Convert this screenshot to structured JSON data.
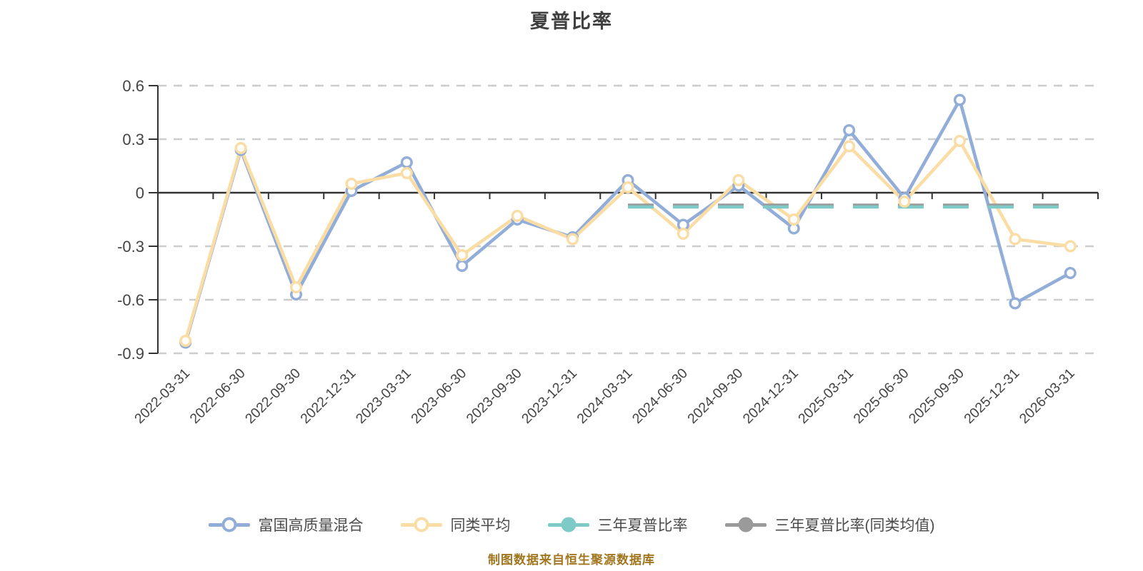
{
  "title": "夏普比率",
  "caption": "制图数据来自恒生聚源数据库",
  "colors": {
    "fund_line": "#92add8",
    "peer_line": "#f9dda4",
    "sharpe_3y_line": "#7ecac6",
    "sharpe_3y_peer_line": "#9a9a9a",
    "gridline": "#cdcdcd",
    "axis": "#333333",
    "tick_label": "#444444",
    "title_text": "#404040",
    "caption_text": "#a1761f"
  },
  "legend": [
    {
      "key": "fund",
      "label": "富国高质量混合",
      "color": "#92add8",
      "marker": "hollow"
    },
    {
      "key": "peer-avg",
      "label": "同类平均",
      "color": "#f9dda4",
      "marker": "hollow"
    },
    {
      "key": "sharpe-3y",
      "label": "三年夏普比率",
      "color": "#7ecac6",
      "marker": "solid"
    },
    {
      "key": "sharpe-3y-peer",
      "label": "三年夏普比率(同类均值)",
      "color": "#9a9a9a",
      "marker": "solid"
    }
  ],
  "chart_data": {
    "type": "line",
    "title": "夏普比率",
    "categories": [
      "2022-03-31",
      "2022-06-30",
      "2022-09-30",
      "2022-12-31",
      "2023-03-31",
      "2023-06-30",
      "2023-09-30",
      "2023-12-31",
      "2024-03-31",
      "2024-06-30",
      "2024-09-30",
      "2024-12-31",
      "2025-03-31",
      "2025-06-30",
      "2025-09-30",
      "2025-12-31",
      "2026-03-31"
    ],
    "series": [
      {
        "key": "fund",
        "name": "富国高质量混合",
        "color": "#92add8",
        "style": "solid",
        "marker": "hollow",
        "values": [
          -0.84,
          0.24,
          -0.57,
          0.01,
          0.17,
          -0.41,
          -0.15,
          -0.25,
          0.07,
          -0.18,
          0.04,
          -0.2,
          0.35,
          -0.03,
          0.52,
          -0.62,
          -0.45
        ]
      },
      {
        "key": "peer-avg",
        "name": "同类平均",
        "color": "#f9dda4",
        "style": "solid",
        "marker": "hollow",
        "values": [
          -0.83,
          0.25,
          -0.53,
          0.05,
          0.11,
          -0.35,
          -0.13,
          -0.26,
          0.03,
          -0.23,
          0.07,
          -0.15,
          0.26,
          -0.05,
          0.29,
          -0.26,
          -0.3
        ]
      },
      {
        "key": "sharpe-3y-peer",
        "name": "三年夏普比率(同类均值)",
        "color": "#9a9a9a",
        "style": "dashed",
        "marker": "none",
        "values": [
          null,
          null,
          null,
          null,
          null,
          null,
          null,
          null,
          -0.07,
          -0.07,
          -0.07,
          -0.07,
          -0.07,
          -0.07,
          -0.07,
          -0.07,
          -0.07
        ]
      },
      {
        "key": "sharpe-3y",
        "name": "三年夏普比率",
        "color": "#7ecac6",
        "style": "dashed",
        "marker": "none",
        "values": [
          null,
          null,
          null,
          null,
          null,
          null,
          null,
          null,
          -0.08,
          -0.08,
          -0.08,
          -0.08,
          -0.08,
          -0.08,
          -0.08,
          -0.08,
          -0.08
        ]
      }
    ],
    "y_ticks": [
      "0.6",
      "0.3",
      "0",
      "-0.3",
      "-0.6",
      "-0.9"
    ],
    "y_tick_values": [
      0.6,
      0.3,
      0,
      -0.3,
      -0.6,
      -0.9
    ],
    "ylim": [
      -0.9,
      0.6
    ],
    "xlabel": "",
    "ylabel": "",
    "grid": "horizontal-dashed",
    "x_label_rotation": -45,
    "legend_position": "bottom"
  }
}
